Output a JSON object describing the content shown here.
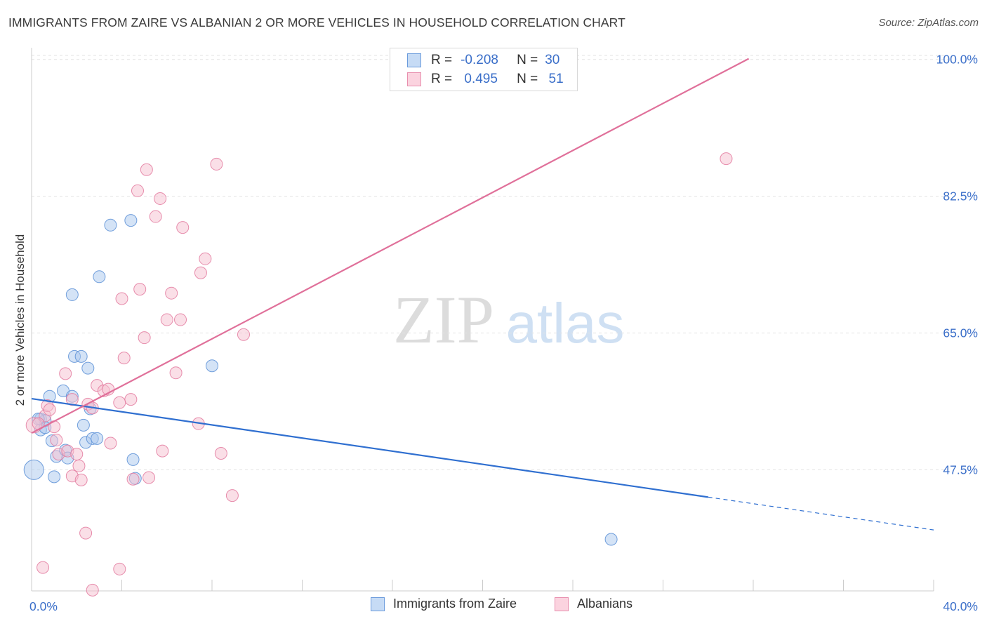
{
  "title": "IMMIGRANTS FROM ZAIRE VS ALBANIAN 2 OR MORE VEHICLES IN HOUSEHOLD CORRELATION CHART",
  "source": "Source: ZipAtlas.com",
  "watermark": {
    "zip": "ZIP",
    "atlas": "atlas"
  },
  "legend_top": {
    "rows": [
      {
        "r_label": "R =",
        "r_value": "-0.208",
        "n_label": "N =",
        "n_value": "30"
      },
      {
        "r_label": "R =",
        "r_value": " 0.495",
        "n_label": "N =",
        "n_value": " 51"
      }
    ]
  },
  "legend_bottom": {
    "items": [
      {
        "label": "Immigrants from Zaire"
      },
      {
        "label": "Albanians"
      }
    ]
  },
  "chart_data": {
    "type": "scatter",
    "xlabel": "",
    "ylabel": "2 or more Vehicles in Household",
    "xlim": [
      0,
      40
    ],
    "ylim": [
      32,
      101.5
    ],
    "x_tick_labels": [
      {
        "value": 0,
        "label": "0.0%"
      },
      {
        "value": 40,
        "label": "40.0%"
      }
    ],
    "y_tick_labels": [
      {
        "value": 47.5,
        "label": "47.5%"
      },
      {
        "value": 65.0,
        "label": "65.0%"
      },
      {
        "value": 82.5,
        "label": "82.5%"
      },
      {
        "value": 100.0,
        "label": "100.0%"
      }
    ],
    "series": [
      {
        "name": "Immigrants from Zaire",
        "color": "#5b8fd6",
        "fill": "#aac8ee",
        "points": [
          [
            0.1,
            47.5
          ],
          [
            0.4,
            54.0
          ],
          [
            0.4,
            52.6
          ],
          [
            0.6,
            53.8
          ],
          [
            0.6,
            52.9
          ],
          [
            0.8,
            56.9
          ],
          [
            0.9,
            51.2
          ],
          [
            1.0,
            46.6
          ],
          [
            1.1,
            49.2
          ],
          [
            1.4,
            57.6
          ],
          [
            1.5,
            50.0
          ],
          [
            1.6,
            49.0
          ],
          [
            1.8,
            69.9
          ],
          [
            1.8,
            56.9
          ],
          [
            1.9,
            62.0
          ],
          [
            2.2,
            62.0
          ],
          [
            2.3,
            53.2
          ],
          [
            2.4,
            51.0
          ],
          [
            2.5,
            60.5
          ],
          [
            2.6,
            55.3
          ],
          [
            2.7,
            51.5
          ],
          [
            2.9,
            51.5
          ],
          [
            3.0,
            72.2
          ],
          [
            3.5,
            78.8
          ],
          [
            4.4,
            79.4
          ],
          [
            4.5,
            48.8
          ],
          [
            4.6,
            46.4
          ],
          [
            8.0,
            60.8
          ],
          [
            25.7,
            38.6
          ],
          [
            0.3,
            54.0
          ]
        ],
        "trend": {
          "x0": 0,
          "y0": 56.6,
          "x1": 30.0,
          "y1": 44.0,
          "dash_x1": 40,
          "dash_y1": 39.8
        }
      },
      {
        "name": "Albanians",
        "color": "#e37a9f",
        "fill": "#f6bfd0",
        "points": [
          [
            0.1,
            53.2
          ],
          [
            0.6,
            54.4
          ],
          [
            0.7,
            55.7
          ],
          [
            0.8,
            55.2
          ],
          [
            1.0,
            53.0
          ],
          [
            1.1,
            51.3
          ],
          [
            1.2,
            49.5
          ],
          [
            1.5,
            59.8
          ],
          [
            1.6,
            49.9
          ],
          [
            1.8,
            56.5
          ],
          [
            1.8,
            46.7
          ],
          [
            2.0,
            49.5
          ],
          [
            2.1,
            48.0
          ],
          [
            2.2,
            46.2
          ],
          [
            2.4,
            39.4
          ],
          [
            2.5,
            55.9
          ],
          [
            2.7,
            55.4
          ],
          [
            2.9,
            58.3
          ],
          [
            3.2,
            57.6
          ],
          [
            3.4,
            57.8
          ],
          [
            3.5,
            50.9
          ],
          [
            3.9,
            56.1
          ],
          [
            4.0,
            69.4
          ],
          [
            4.1,
            61.8
          ],
          [
            4.4,
            56.5
          ],
          [
            4.5,
            46.3
          ],
          [
            4.7,
            83.2
          ],
          [
            4.8,
            70.6
          ],
          [
            5.0,
            64.4
          ],
          [
            5.1,
            85.9
          ],
          [
            5.2,
            46.5
          ],
          [
            5.5,
            79.9
          ],
          [
            5.7,
            82.2
          ],
          [
            5.8,
            49.9
          ],
          [
            6.0,
            66.7
          ],
          [
            6.2,
            70.1
          ],
          [
            6.4,
            59.9
          ],
          [
            6.6,
            66.7
          ],
          [
            6.7,
            78.5
          ],
          [
            7.4,
            53.4
          ],
          [
            7.5,
            72.7
          ],
          [
            7.7,
            74.5
          ],
          [
            8.2,
            86.6
          ],
          [
            8.4,
            49.6
          ],
          [
            8.9,
            44.2
          ],
          [
            9.4,
            64.8
          ],
          [
            30.8,
            87.3
          ],
          [
            0.5,
            35.0
          ],
          [
            3.9,
            34.8
          ],
          [
            2.7,
            32.1
          ],
          [
            0.3,
            53.4
          ]
        ],
        "trend": {
          "x0": 0,
          "y0": 52.2,
          "x1": 31.8,
          "y1": 100.1
        }
      }
    ],
    "grid": true,
    "legend": "top-center"
  }
}
